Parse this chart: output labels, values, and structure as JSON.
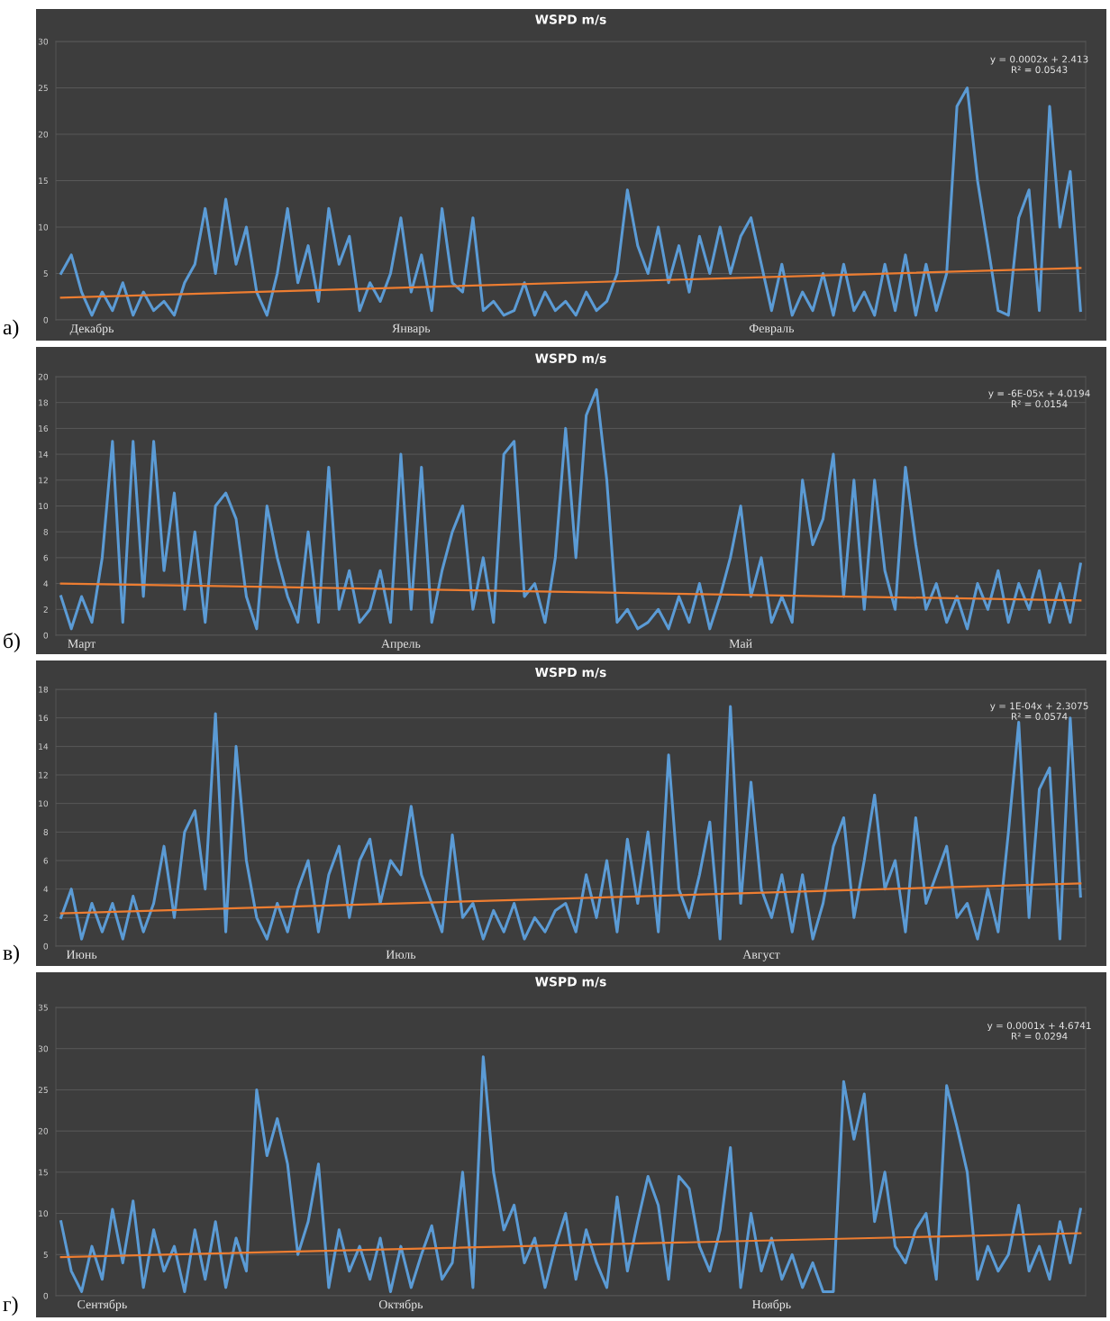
{
  "chart_data": [
    {
      "type": "line",
      "title": "WSPD m/s",
      "ylim": [
        0,
        30
      ],
      "yticks": [
        0,
        5,
        10,
        15,
        20,
        25,
        30
      ],
      "grid": "y",
      "categories": [
        null,
        null,
        null,
        "Декабрь",
        null,
        null,
        null,
        null,
        null,
        null,
        null,
        null,
        null,
        null,
        null,
        null,
        null,
        null,
        null,
        null,
        null,
        null,
        null,
        null,
        null,
        null,
        null,
        null,
        null,
        null,
        null,
        null,
        null,
        null,
        "Январь",
        null,
        null,
        null,
        null,
        null,
        null,
        null,
        null,
        null,
        null,
        null,
        null,
        null,
        null,
        null,
        null,
        null,
        null,
        null,
        null,
        null,
        null,
        null,
        null,
        null,
        null,
        null,
        null,
        null,
        null,
        null,
        null,
        null,
        null,
        "Февраль",
        null,
        null,
        null,
        null,
        null,
        null,
        null,
        null,
        null,
        null,
        null,
        null,
        null,
        null,
        null,
        null,
        null,
        null,
        null,
        null,
        null,
        null,
        null,
        null,
        null,
        null,
        null,
        null,
        null,
        null
      ],
      "series": [
        {
          "type": "line",
          "color": "#5b9bd5",
          "values": [
            5,
            7,
            3,
            0.5,
            3,
            1,
            4,
            0.5,
            3,
            1,
            2,
            0.5,
            4,
            6,
            12,
            5,
            13,
            6,
            10,
            3,
            0.5,
            5,
            12,
            4,
            8,
            2,
            12,
            6,
            9,
            1,
            4,
            2,
            5,
            11,
            3,
            7,
            1,
            12,
            4,
            3,
            11,
            1,
            2,
            0.5,
            1,
            4,
            0.5,
            3,
            1,
            2,
            0.5,
            3,
            1,
            2,
            5,
            14,
            8,
            5,
            10,
            4,
            8,
            3,
            9,
            5,
            10,
            5,
            9,
            11,
            6,
            1,
            6,
            0.5,
            3,
            1,
            5,
            0.5,
            6,
            1,
            3,
            0.5,
            6,
            1,
            7,
            0.5,
            6,
            1,
            5,
            23,
            25,
            15,
            8,
            1,
            0.5,
            11,
            14,
            1,
            23,
            10,
            16,
            1
          ]
        },
        {
          "type": "line",
          "color": "#ed7d31",
          "values": [
            2.4,
            null,
            null,
            null,
            null,
            null,
            null,
            null,
            null,
            null,
            null,
            null,
            null,
            null,
            null,
            null,
            null,
            null,
            null,
            null,
            null,
            null,
            null,
            null,
            null,
            null,
            null,
            null,
            null,
            null,
            null,
            null,
            null,
            null,
            null,
            null,
            null,
            null,
            null,
            null,
            null,
            null,
            null,
            null,
            null,
            null,
            null,
            null,
            null,
            null,
            null,
            null,
            null,
            null,
            null,
            null,
            null,
            null,
            null,
            null,
            null,
            null,
            null,
            null,
            null,
            null,
            null,
            null,
            null,
            null,
            null,
            null,
            null,
            null,
            null,
            null,
            null,
            null,
            null,
            null,
            null,
            null,
            null,
            null,
            null,
            null,
            null,
            null,
            null,
            null,
            null,
            null,
            null,
            null,
            null,
            null,
            null,
            null,
            null,
            5.6
          ]
        }
      ],
      "annotations": [
        "y = 0.0002x + 2.413\nR² = 0.0543",
        "а)"
      ]
    },
    {
      "type": "line",
      "title": "WSPD m/s",
      "ylim": [
        0,
        20
      ],
      "yticks": [
        0,
        2,
        4,
        6,
        8,
        10,
        12,
        14,
        16,
        18,
        20
      ],
      "grid": "y",
      "categories": [
        null,
        null,
        "Март",
        null,
        null,
        null,
        null,
        null,
        null,
        null,
        null,
        null,
        null,
        null,
        null,
        null,
        null,
        null,
        null,
        null,
        null,
        null,
        null,
        null,
        null,
        null,
        null,
        null,
        null,
        null,
        null,
        null,
        null,
        "Апрель",
        null,
        null,
        null,
        null,
        null,
        null,
        null,
        null,
        null,
        null,
        null,
        null,
        null,
        null,
        null,
        null,
        null,
        null,
        null,
        null,
        null,
        null,
        null,
        null,
        null,
        null,
        null,
        null,
        null,
        null,
        null,
        null,
        "Май",
        null,
        null,
        null,
        null,
        null,
        null,
        null,
        null,
        null,
        null,
        null,
        null,
        null,
        null,
        null,
        null,
        null,
        null,
        null,
        null,
        null,
        null,
        null,
        null,
        null,
        null,
        null,
        null,
        null,
        null,
        null,
        null,
        null
      ],
      "series": [
        {
          "type": "line",
          "color": "#5b9bd5",
          "values": [
            3,
            0.5,
            3,
            1,
            6,
            15,
            1,
            15,
            3,
            15,
            5,
            11,
            2,
            8,
            1,
            10,
            11,
            9,
            3,
            0.5,
            10,
            6,
            3,
            1,
            8,
            1,
            13,
            2,
            5,
            1,
            2,
            5,
            1,
            14,
            2,
            13,
            1,
            5,
            8,
            10,
            2,
            6,
            1,
            14,
            15,
            3,
            4,
            1,
            6,
            16,
            6,
            17,
            19,
            12,
            1,
            2,
            0.5,
            1,
            2,
            0.5,
            3,
            1,
            4,
            0.5,
            3,
            6,
            10,
            3,
            6,
            1,
            3,
            1,
            12,
            7,
            9,
            14,
            3,
            12,
            2,
            12,
            5,
            2,
            13,
            7,
            2,
            4,
            1,
            3,
            0.5,
            4,
            2,
            5,
            1,
            4,
            2,
            5,
            1,
            4,
            1,
            5.5
          ]
        },
        {
          "type": "line",
          "color": "#ed7d31",
          "values": [
            4.0,
            null,
            null,
            null,
            null,
            null,
            null,
            null,
            null,
            null,
            null,
            null,
            null,
            null,
            null,
            null,
            null,
            null,
            null,
            null,
            null,
            null,
            null,
            null,
            null,
            null,
            null,
            null,
            null,
            null,
            null,
            null,
            null,
            null,
            null,
            null,
            null,
            null,
            null,
            null,
            null,
            null,
            null,
            null,
            null,
            null,
            null,
            null,
            null,
            null,
            null,
            null,
            null,
            null,
            null,
            null,
            null,
            null,
            null,
            null,
            null,
            null,
            null,
            null,
            null,
            null,
            null,
            null,
            null,
            null,
            null,
            null,
            null,
            null,
            null,
            null,
            null,
            null,
            null,
            null,
            null,
            null,
            null,
            null,
            null,
            null,
            null,
            null,
            null,
            null,
            null,
            null,
            null,
            null,
            null,
            null,
            null,
            null,
            null,
            2.7
          ]
        }
      ],
      "annotations": [
        "y = -6E-05x + 4.0194\nR² = 0.0154",
        "б)"
      ]
    },
    {
      "type": "line",
      "title": "WSPD m/s",
      "ylim": [
        0,
        18
      ],
      "yticks": [
        0,
        2,
        4,
        6,
        8,
        10,
        12,
        14,
        16,
        18
      ],
      "grid": "y",
      "categories": [
        null,
        null,
        "Июнь",
        null,
        null,
        null,
        null,
        null,
        null,
        null,
        null,
        null,
        null,
        null,
        null,
        null,
        null,
        null,
        null,
        null,
        null,
        null,
        null,
        null,
        null,
        null,
        null,
        null,
        null,
        null,
        null,
        null,
        null,
        "Июль",
        null,
        null,
        null,
        null,
        null,
        null,
        null,
        null,
        null,
        null,
        null,
        null,
        null,
        null,
        null,
        null,
        null,
        null,
        null,
        null,
        null,
        null,
        null,
        null,
        null,
        null,
        null,
        null,
        null,
        null,
        null,
        null,
        null,
        null,
        "Август",
        null,
        null,
        null,
        null,
        null,
        null,
        null,
        null,
        null,
        null,
        null,
        null,
        null,
        null,
        null,
        null,
        null,
        null,
        null,
        null,
        null,
        null,
        null,
        null,
        null,
        null,
        null,
        null,
        null,
        null,
        null
      ],
      "series": [
        {
          "type": "line",
          "color": "#5b9bd5",
          "values": [
            2,
            4,
            0.5,
            3,
            1,
            3,
            0.5,
            3.5,
            1,
            3,
            7,
            2,
            8,
            9.5,
            4,
            16.3,
            1,
            14,
            6,
            2,
            0.5,
            3,
            1,
            4,
            6,
            1,
            5,
            7,
            2,
            6,
            7.5,
            3,
            6,
            5,
            9.8,
            5,
            3,
            1,
            7.8,
            2,
            3,
            0.5,
            2.5,
            1,
            3,
            0.5,
            2,
            1,
            2.5,
            3,
            1,
            5,
            2,
            6,
            1,
            7.5,
            3,
            8,
            1,
            13.4,
            4,
            2,
            5,
            8.7,
            0.5,
            16.8,
            3,
            11.5,
            4,
            2,
            5,
            1,
            5,
            0.5,
            3,
            7,
            9,
            2,
            6,
            10.6,
            4,
            6,
            1,
            9,
            3,
            5,
            7,
            2,
            3,
            0.5,
            4,
            1,
            8,
            15.7,
            2,
            11,
            12.5,
            0.5,
            16,
            3.5
          ]
        },
        {
          "type": "line",
          "color": "#ed7d31",
          "values": [
            2.3,
            null,
            null,
            null,
            null,
            null,
            null,
            null,
            null,
            null,
            null,
            null,
            null,
            null,
            null,
            null,
            null,
            null,
            null,
            null,
            null,
            null,
            null,
            null,
            null,
            null,
            null,
            null,
            null,
            null,
            null,
            null,
            null,
            null,
            null,
            null,
            null,
            null,
            null,
            null,
            null,
            null,
            null,
            null,
            null,
            null,
            null,
            null,
            null,
            null,
            null,
            null,
            null,
            null,
            null,
            null,
            null,
            null,
            null,
            null,
            null,
            null,
            null,
            null,
            null,
            null,
            null,
            null,
            null,
            null,
            null,
            null,
            null,
            null,
            null,
            null,
            null,
            null,
            null,
            null,
            null,
            null,
            null,
            null,
            null,
            null,
            null,
            null,
            null,
            null,
            null,
            null,
            null,
            null,
            null,
            null,
            null,
            null,
            null,
            4.4
          ]
        }
      ],
      "annotations": [
        "y = 1E-04x + 2.3075\nR² = 0.0574",
        "в)"
      ]
    },
    {
      "type": "line",
      "title": "WSPD m/s",
      "ylim": [
        0,
        35
      ],
      "yticks": [
        0,
        5,
        10,
        15,
        20,
        25,
        30,
        35
      ],
      "grid": "y",
      "categories": [
        null,
        null,
        null,
        null,
        "Сентябрь",
        null,
        null,
        null,
        null,
        null,
        null,
        null,
        null,
        null,
        null,
        null,
        null,
        null,
        null,
        null,
        null,
        null,
        null,
        null,
        null,
        null,
        null,
        null,
        null,
        null,
        null,
        null,
        null,
        "Октябрь",
        null,
        null,
        null,
        null,
        null,
        null,
        null,
        null,
        null,
        null,
        null,
        null,
        null,
        null,
        null,
        null,
        null,
        null,
        null,
        null,
        null,
        null,
        null,
        null,
        null,
        null,
        null,
        null,
        null,
        null,
        null,
        null,
        null,
        null,
        null,
        "Ноябрь",
        null,
        null,
        null,
        null,
        null,
        null,
        null,
        null,
        null,
        null,
        null,
        null,
        null,
        null,
        null,
        null,
        null,
        null,
        null,
        null,
        null,
        null,
        null,
        null,
        null,
        null,
        null,
        null,
        null,
        null
      ],
      "series": [
        {
          "type": "line",
          "color": "#5b9bd5",
          "values": [
            9,
            3,
            0.5,
            6,
            2,
            10.5,
            4,
            11.5,
            1,
            8,
            3,
            6,
            0.5,
            8,
            2,
            9,
            1,
            7,
            3,
            25,
            17,
            21.5,
            16,
            5,
            9,
            16,
            1,
            8,
            3,
            6,
            2,
            7,
            0.5,
            6,
            1,
            5,
            8.5,
            2,
            4,
            15,
            1,
            29,
            15,
            8,
            11,
            4,
            7,
            1,
            6,
            10,
            2,
            8,
            4,
            1,
            12,
            3,
            9,
            14.5,
            11,
            2,
            14.5,
            13,
            6,
            3,
            8,
            18,
            1,
            10,
            3,
            7,
            2,
            5,
            1,
            4,
            0.5,
            0.5,
            26,
            19,
            24.5,
            9,
            15,
            6,
            4,
            8,
            10,
            2,
            25.5,
            20.5,
            15,
            2,
            6,
            3,
            5,
            11,
            3,
            6,
            2,
            9,
            4,
            10.5
          ]
        },
        {
          "type": "line",
          "color": "#ed7d31",
          "values": [
            4.7,
            null,
            null,
            null,
            null,
            null,
            null,
            null,
            null,
            null,
            null,
            null,
            null,
            null,
            null,
            null,
            null,
            null,
            null,
            null,
            null,
            null,
            null,
            null,
            null,
            null,
            null,
            null,
            null,
            null,
            null,
            null,
            null,
            null,
            null,
            null,
            null,
            null,
            null,
            null,
            null,
            null,
            null,
            null,
            null,
            null,
            null,
            null,
            null,
            null,
            null,
            null,
            null,
            null,
            null,
            null,
            null,
            null,
            null,
            null,
            null,
            null,
            null,
            null,
            null,
            null,
            null,
            null,
            null,
            null,
            null,
            null,
            null,
            null,
            null,
            null,
            null,
            null,
            null,
            null,
            null,
            null,
            null,
            null,
            null,
            null,
            null,
            null,
            null,
            null,
            null,
            null,
            null,
            null,
            null,
            null,
            null,
            null,
            null,
            7.6
          ]
        }
      ],
      "annotations": [
        "y = 0.0001x + 4.6741\nR² = 0.0294",
        "г)"
      ]
    }
  ]
}
